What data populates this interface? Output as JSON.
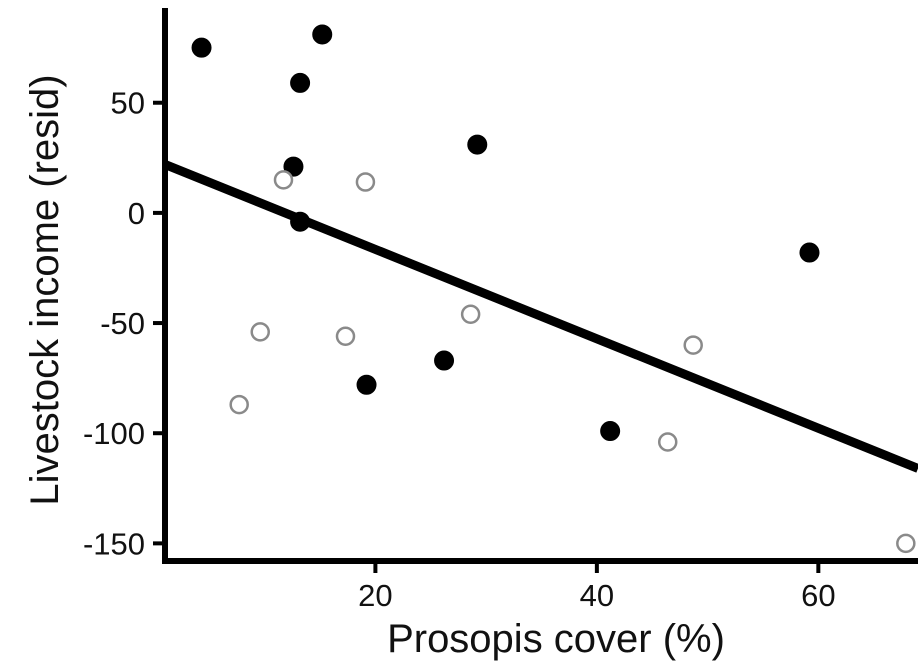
{
  "chart_data": {
    "type": "scatter",
    "title": "",
    "xlabel": "Prosopis cover (%)",
    "ylabel": "Livestock income (resid)",
    "xlim": [
      1,
      69
    ],
    "ylim": [
      -158,
      93
    ],
    "xticks": [
      20,
      40,
      60
    ],
    "yticks": [
      50,
      0,
      -50,
      -100,
      -150
    ],
    "xtick_labels": [
      "20",
      "40",
      "60"
    ],
    "ytick_labels": [
      "50",
      "0",
      "-50",
      "-100",
      "-150"
    ],
    "grid": false,
    "legend": "none",
    "series": [
      {
        "style": "filled",
        "color": "#000000",
        "points": [
          {
            "x": 4.3,
            "y": 75
          },
          {
            "x": 13.2,
            "y": 59
          },
          {
            "x": 15.2,
            "y": 81
          },
          {
            "x": 12.6,
            "y": 21
          },
          {
            "x": 13.2,
            "y": -4
          },
          {
            "x": 29.2,
            "y": 31
          },
          {
            "x": 19.2,
            "y": -78
          },
          {
            "x": 26.2,
            "y": -67
          },
          {
            "x": 41.2,
            "y": -99
          },
          {
            "x": 59.2,
            "y": -18
          }
        ]
      },
      {
        "style": "open",
        "color": "#8a8a8a",
        "points": [
          {
            "x": 11.7,
            "y": 15
          },
          {
            "x": 19.1,
            "y": 14
          },
          {
            "x": 9.6,
            "y": -54
          },
          {
            "x": 17.3,
            "y": -56
          },
          {
            "x": 7.7,
            "y": -87
          },
          {
            "x": 28.6,
            "y": -46
          },
          {
            "x": 46.4,
            "y": -104
          },
          {
            "x": 48.7,
            "y": -60
          },
          {
            "x": 67.9,
            "y": -150
          }
        ]
      }
    ],
    "fit_line": {
      "x": [
        1,
        69
      ],
      "y": [
        22,
        -116
      ],
      "color": "#000000"
    }
  }
}
